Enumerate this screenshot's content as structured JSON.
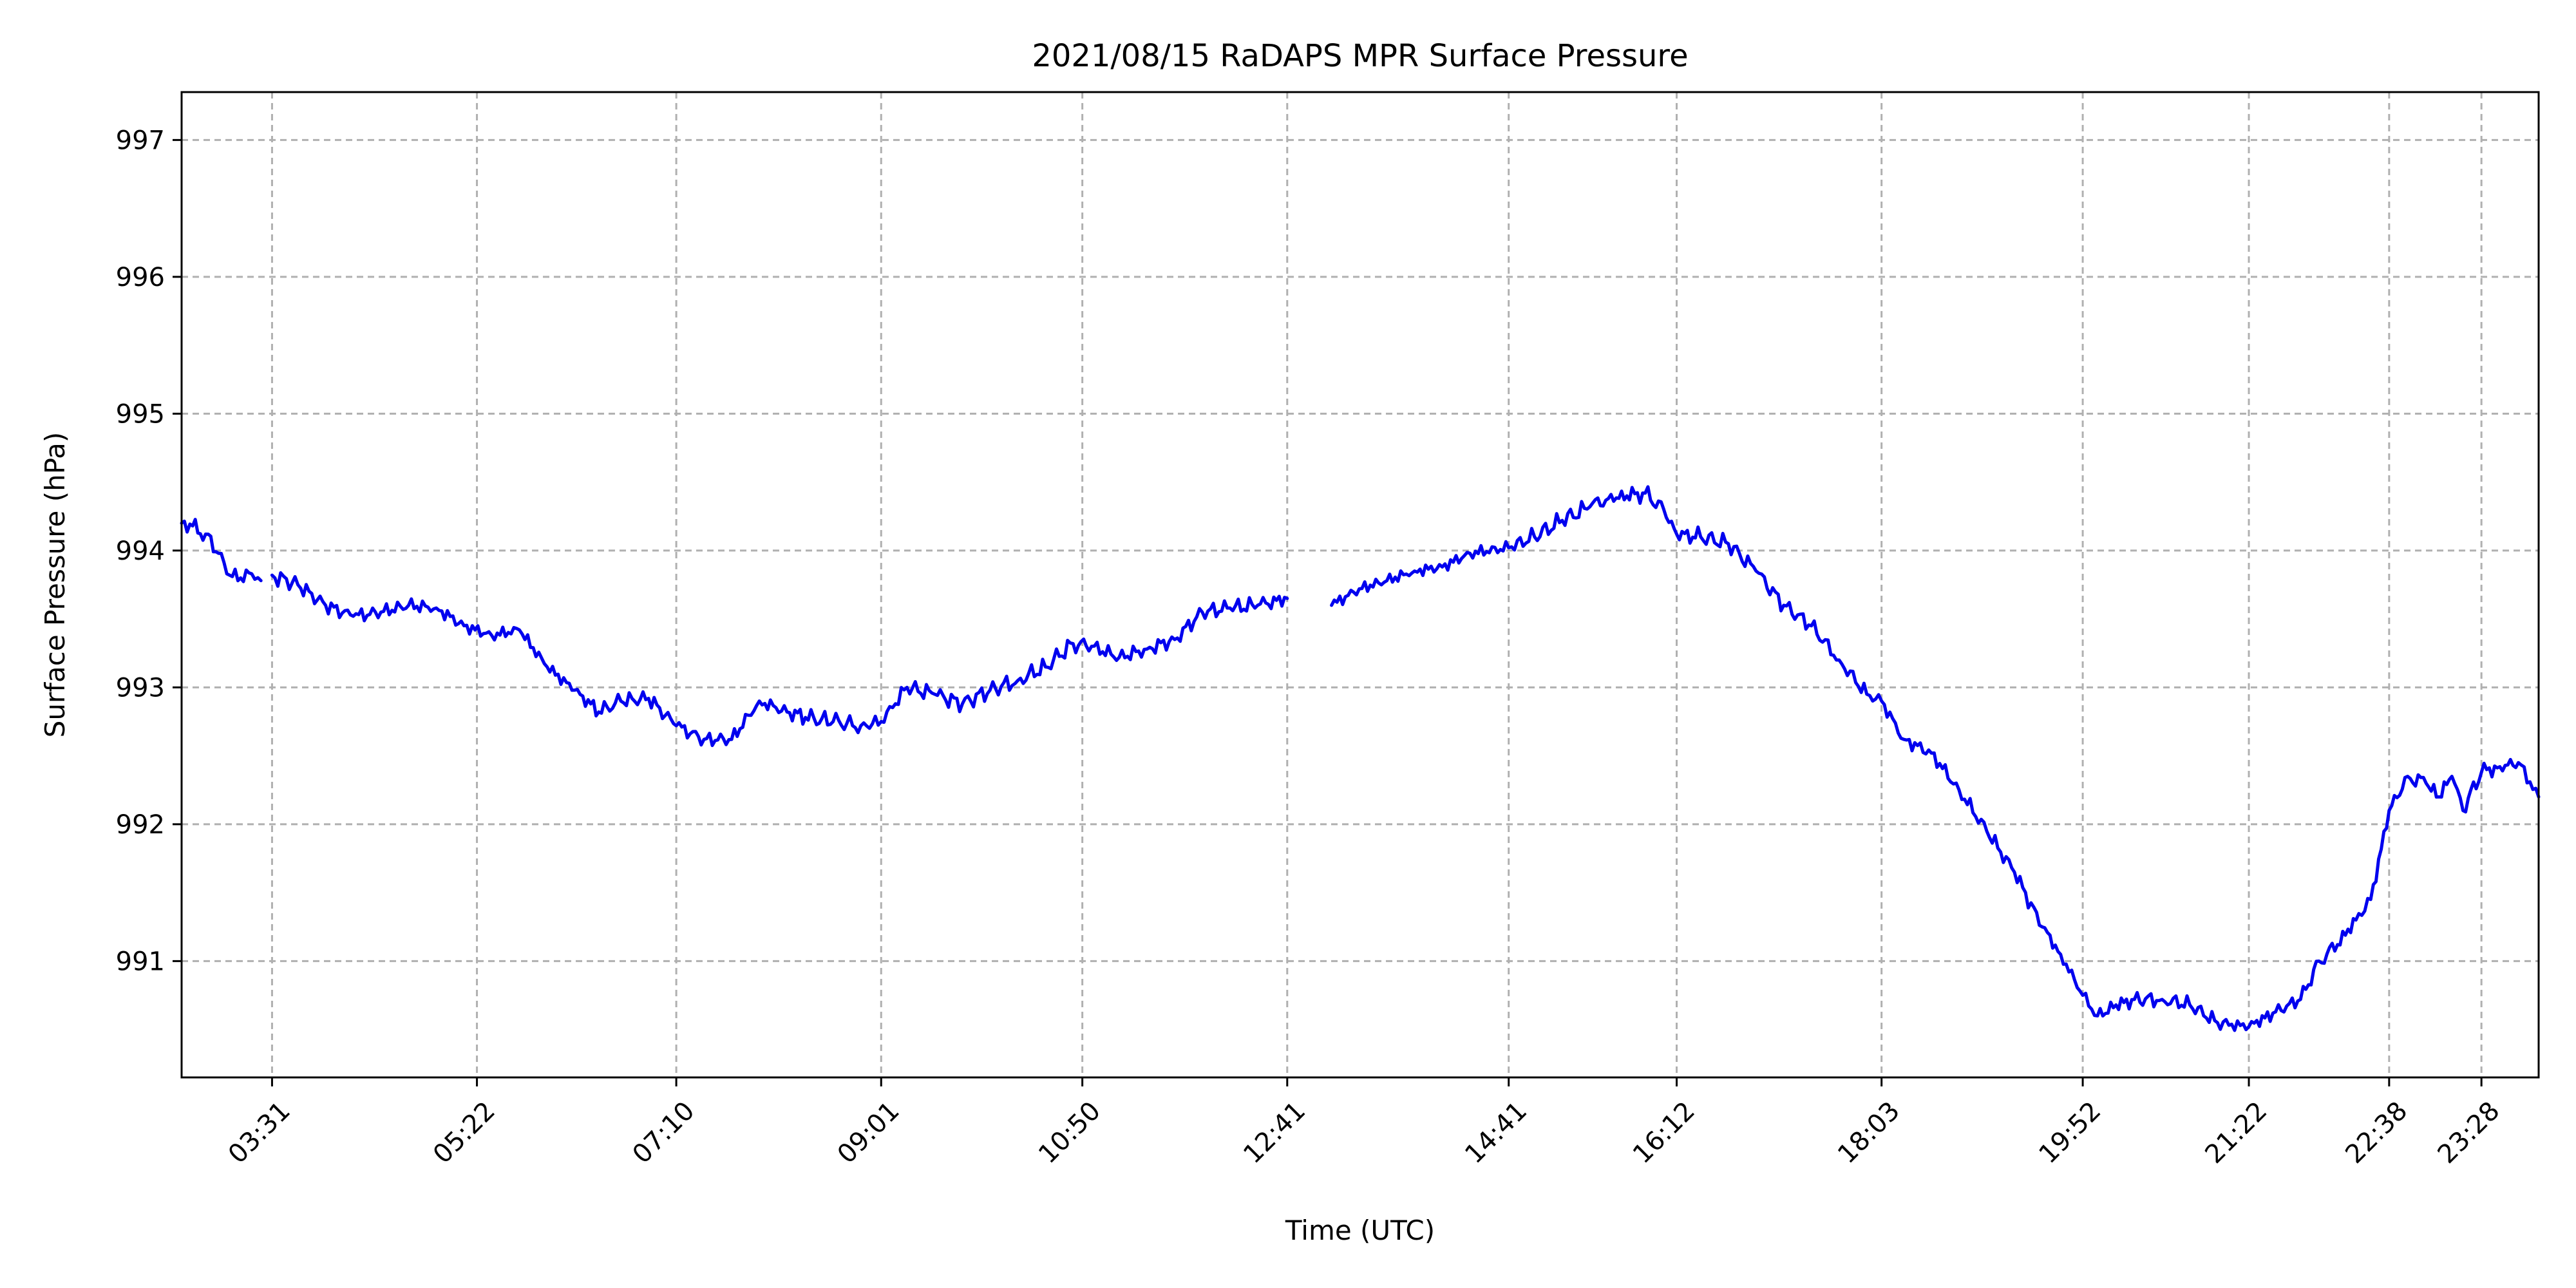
{
  "chart_data": {
    "type": "line",
    "title": "2021/08/15 RaDAPS MPR Surface Pressure",
    "xlabel": "Time (UTC)",
    "ylabel": "Surface Pressure (hPa)",
    "x_axis": {
      "min": "02:42",
      "max": "23:59",
      "ticks": [
        "03:31",
        "05:22",
        "07:10",
        "09:01",
        "10:50",
        "12:41",
        "14:41",
        "16:12",
        "18:03",
        "19:52",
        "21:22",
        "22:38",
        "23:28"
      ]
    },
    "y_axis": {
      "min": 990.15,
      "max": 997.35,
      "ticks": [
        991,
        992,
        993,
        994,
        995,
        996,
        997
      ]
    },
    "grid": true,
    "colors": {
      "line": "#0000ee",
      "grid": "#b0b0b0"
    },
    "series": [
      {
        "segments": [
          {
            "x": [
              "02:42",
              "02:48",
              "02:55",
              "03:02",
              "03:08",
              "03:14",
              "03:20",
              "03:25"
            ],
            "y": [
              994.2,
              994.18,
              994.12,
              993.98,
              993.82,
              993.8,
              993.83,
              993.78
            ]
          },
          {
            "x": [
              "03:31",
              "03:45",
              "04:00",
              "04:15",
              "04:30",
              "04:45",
              "05:00",
              "05:15",
              "05:30",
              "05:45",
              "06:00",
              "06:15",
              "06:28",
              "06:40",
              "06:55",
              "07:10",
              "07:25",
              "07:40",
              "07:55",
              "08:10",
              "08:20",
              "08:35",
              "08:50",
              "09:01",
              "09:15",
              "09:30",
              "09:45",
              "10:00",
              "10:15",
              "10:30",
              "10:45",
              "10:55",
              "11:10",
              "11:25",
              "11:40",
              "11:55",
              "12:10",
              "12:25",
              "12:41"
            ],
            "y": [
              993.82,
              993.75,
              993.6,
              993.52,
              993.55,
              993.6,
              993.58,
              993.45,
              993.38,
              993.42,
              993.15,
              992.98,
              992.82,
              992.9,
              992.92,
              992.72,
              992.62,
              992.62,
              992.9,
              992.82,
              992.78,
              992.75,
              992.72,
              992.75,
              993.0,
              992.95,
              992.88,
              992.98,
              993.05,
              993.15,
              993.32,
              993.3,
              993.22,
              993.28,
              993.35,
              993.55,
              993.58,
              993.6,
              993.65
            ]
          },
          {
            "x": [
              "13:05",
              "13:20",
              "13:35",
              "13:50",
              "14:05",
              "14:20",
              "14:41",
              "14:55",
              "15:10",
              "15:25",
              "15:35",
              "15:45",
              "15:55",
              "16:05",
              "16:12",
              "16:25",
              "16:40",
              "16:55",
              "17:10",
              "17:25",
              "17:40",
              "17:55",
              "18:03",
              "18:15",
              "18:30",
              "18:45",
              "19:00",
              "19:15",
              "19:30",
              "19:40",
              "19:52",
              "20:00",
              "20:10",
              "20:20",
              "20:35",
              "20:50",
              "21:05",
              "21:22",
              "21:35",
              "21:50",
              "22:00",
              "22:10",
              "22:20",
              "22:28",
              "22:38",
              "22:48",
              "22:58",
              "23:05",
              "23:12",
              "23:18",
              "23:28",
              "23:38",
              "23:48",
              "23:59"
            ],
            "y": [
              993.6,
              993.72,
              993.78,
              993.85,
              993.88,
              993.98,
              994.02,
              994.1,
              994.22,
              994.32,
              994.38,
              994.4,
              994.42,
              994.3,
              994.12,
              994.1,
              994.05,
              993.85,
              993.6,
              993.45,
              993.2,
              992.95,
              992.9,
              992.62,
              992.52,
              992.25,
              991.95,
              991.65,
              991.25,
              991.05,
              990.75,
              990.6,
              990.68,
              990.72,
              990.72,
              990.68,
              990.55,
              990.52,
              990.62,
              990.72,
              991.0,
              991.12,
              991.3,
              991.45,
              992.1,
              992.35,
              992.3,
              992.2,
              992.35,
              992.1,
              992.38,
              992.42,
              992.45,
              992.2
            ]
          }
        ]
      }
    ]
  }
}
